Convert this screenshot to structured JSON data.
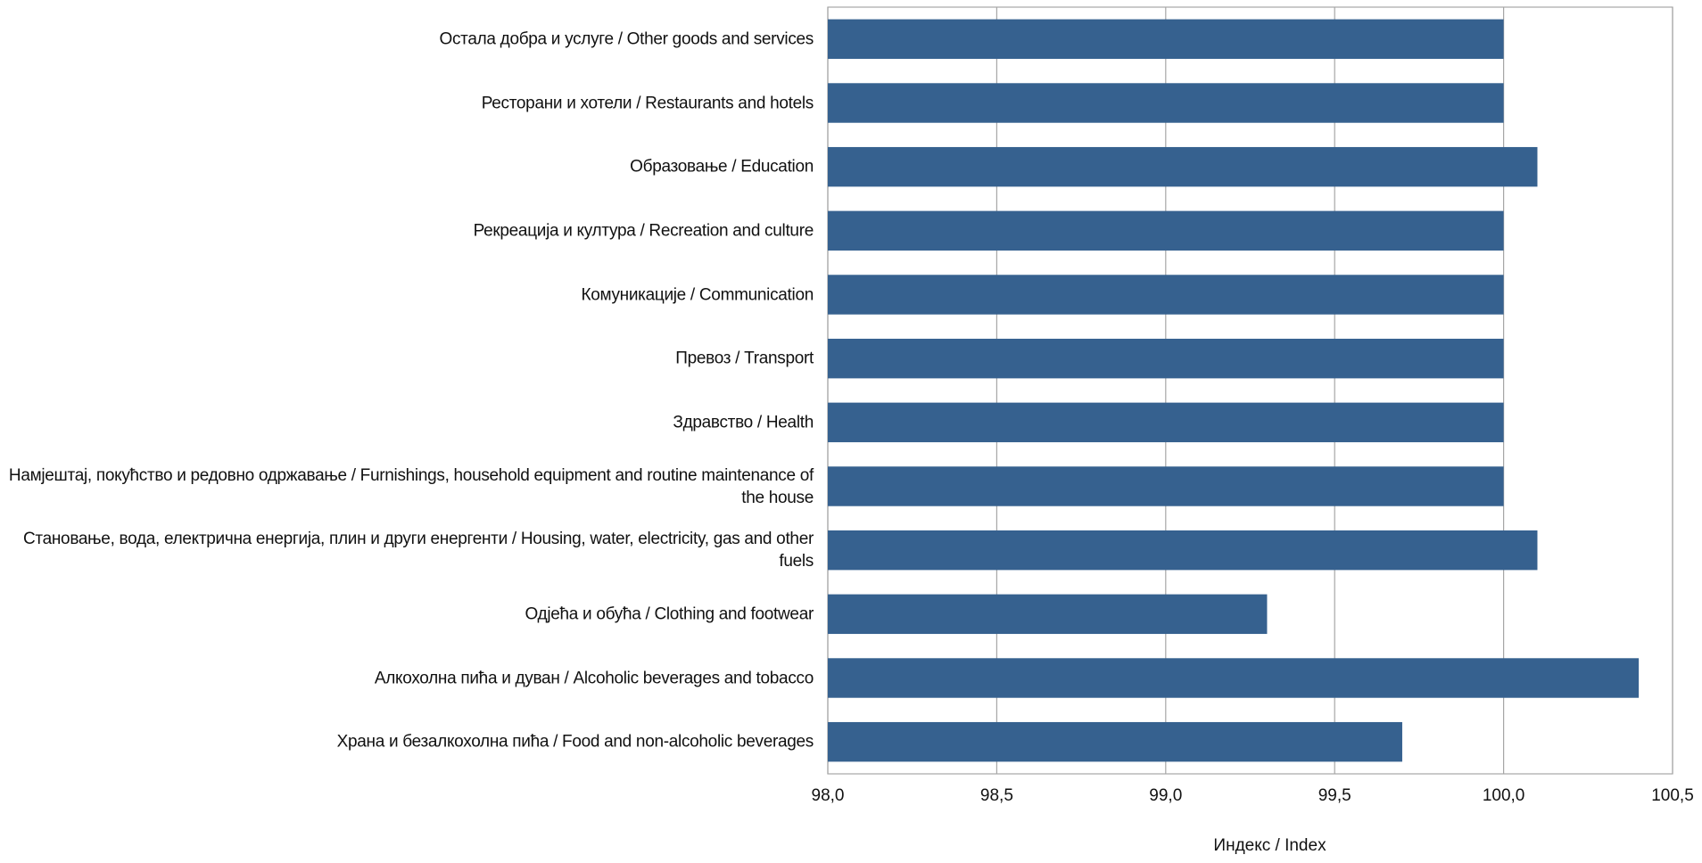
{
  "chart_data": {
    "type": "bar",
    "orientation": "horizontal",
    "categories": [
      "Остала добра и услуге / Other goods and services",
      "Ресторани и хотели / Restaurants and hotels",
      "Образовање / Education",
      "Рекреација и култура / Recreation and culture",
      "Комуникације / Communication",
      "Превоз / Transport",
      "Здравство / Health",
      "Намјештај, покућство и редовно одржавање / Furnishings, household equipment and routine maintenance of the house",
      "Становање, вода, електрична енергија, плин и други енергенти / Housing, water, electricity, gas and other fuels",
      "Одјећа и обућа / Clothing and footwear",
      "Алкохолна пића и дуван / Alcoholic beverages and tobacco",
      "Храна и безалкохолна пића / Food and non-alcoholic beverages"
    ],
    "values": [
      100.0,
      100.0,
      100.1,
      100.0,
      100.0,
      100.0,
      100.0,
      100.0,
      100.1,
      99.3,
      100.4,
      99.7
    ],
    "xlim": [
      98.0,
      100.5
    ],
    "xticks": [
      "98,0",
      "98,5",
      "99,0",
      "99,5",
      "100,0",
      "100,5"
    ],
    "xtick_values": [
      98.0,
      98.5,
      99.0,
      99.5,
      100.0,
      100.5
    ],
    "xlabel": "Индекс / Index",
    "ylabel": "",
    "title": "",
    "grid": "vertical",
    "legend": "none",
    "bar_color": "#36618F",
    "grid_color": "#A6A6A6"
  }
}
